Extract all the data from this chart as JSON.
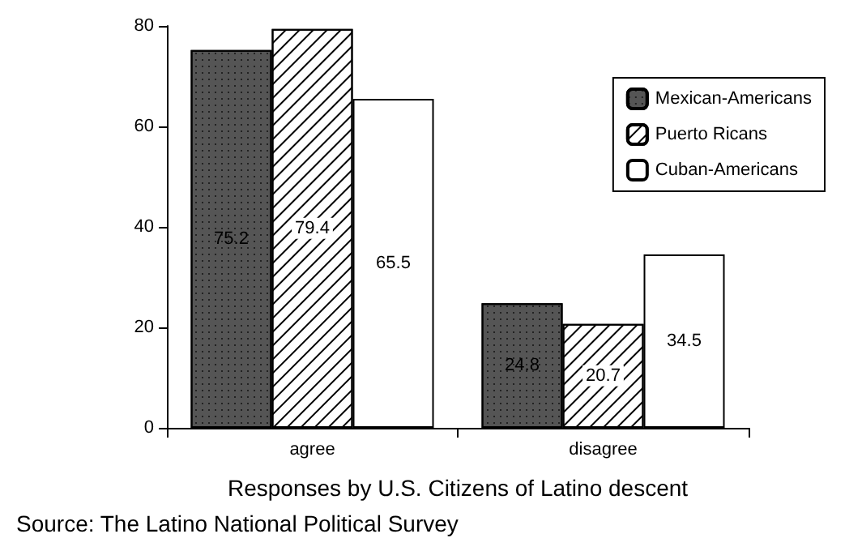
{
  "chart_data": {
    "type": "bar",
    "categories": [
      "agree",
      "disagree"
    ],
    "series": [
      {
        "name": "Mexican-Americans",
        "color": "#555555",
        "values": [
          75.2,
          24.8
        ]
      },
      {
        "name": "Puerto Ricans",
        "color": "#ffffff",
        "values": [
          79.4,
          20.7
        ]
      },
      {
        "name": "Cuban-Americans",
        "color": "#ffffff",
        "values": [
          65.5,
          34.5
        ]
      }
    ],
    "ylim": [
      0,
      80
    ],
    "yticks": [
      0,
      20,
      40,
      60,
      80
    ],
    "grid": false,
    "legend": "top right",
    "data_labels": true,
    "xlabel": "Responses by U.S. Citizens of Latino descent",
    "annotations": [
      "Source: The Latino National Political Survey"
    ]
  }
}
